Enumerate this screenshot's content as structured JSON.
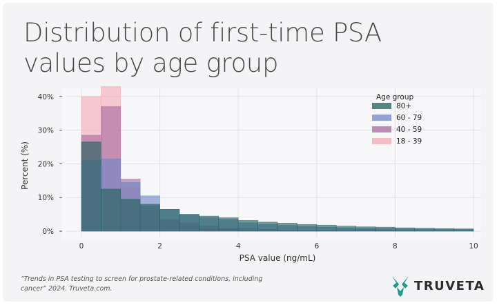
{
  "title": "Distribution of first-time PSA values by age group",
  "source_note": "“Trends in PSA testing to screen for prostate-related conditions, including cancer” 2024. Truveta.com.",
  "brand": {
    "name": "TRUVETA",
    "logo_icon": "truveta-logo-icon",
    "logo_color": "#1e9a8c"
  },
  "chart_data": {
    "type": "histogram",
    "xlabel": "PSA value (ng/mL)",
    "ylabel": "Percent (%)",
    "xlim": [
      0,
      10
    ],
    "ylim": [
      0,
      42
    ],
    "x_ticks": [
      0,
      2,
      4,
      6,
      8,
      10
    ],
    "y_ticks": [
      {
        "value": 0,
        "label": "0%"
      },
      {
        "value": 10,
        "label": "10%"
      },
      {
        "value": 20,
        "label": "20%"
      },
      {
        "value": 30,
        "label": "30%"
      },
      {
        "value": 40,
        "label": "40%"
      }
    ],
    "grid": true,
    "bin_edges": [
      0,
      0.5,
      1.0,
      1.5,
      2.0,
      2.5,
      3.0,
      3.5,
      4.0,
      4.5,
      5.0,
      5.5,
      6.0,
      6.5,
      7.0,
      7.5,
      8.0,
      8.5,
      9.0,
      9.5,
      10.0
    ],
    "legend": {
      "title": "Age group",
      "placement": "top-right"
    },
    "series": [
      {
        "name": "18 - 39",
        "color": "#f3a9b4",
        "values": [
          40,
          43,
          13,
          6,
          3,
          1.5,
          1,
          0.7,
          0.5,
          0.4,
          0.3,
          0.3,
          0.2,
          0.2,
          0.2,
          0.1,
          0.1,
          0.1,
          0.1,
          0.1
        ]
      },
      {
        "name": "40 - 59",
        "color": "#a8699c",
        "values": [
          28.5,
          37,
          15.5,
          7.5,
          3.5,
          2.5,
          1.5,
          1,
          0.8,
          0.6,
          0.4,
          0.3,
          0.3,
          0.2,
          0.2,
          0.2,
          0.1,
          0.1,
          0.1,
          0.1
        ]
      },
      {
        "name": "60 - 79",
        "color": "#6f86c6",
        "values": [
          21,
          21.5,
          14.5,
          10.5,
          6.5,
          5,
          4,
          3.5,
          2.5,
          2,
          1.7,
          1.4,
          1.2,
          1,
          0.9,
          0.8,
          0.7,
          0.6,
          0.5,
          0.5
        ]
      },
      {
        "name": "80+",
        "color": "#1f5f5b",
        "values": [
          26.5,
          12.5,
          9.5,
          8,
          6.5,
          5,
          4.5,
          4,
          3.2,
          2.7,
          2.4,
          2,
          1.8,
          1.5,
          1.3,
          1.2,
          1,
          0.9,
          0.8,
          0.7
        ]
      }
    ]
  }
}
